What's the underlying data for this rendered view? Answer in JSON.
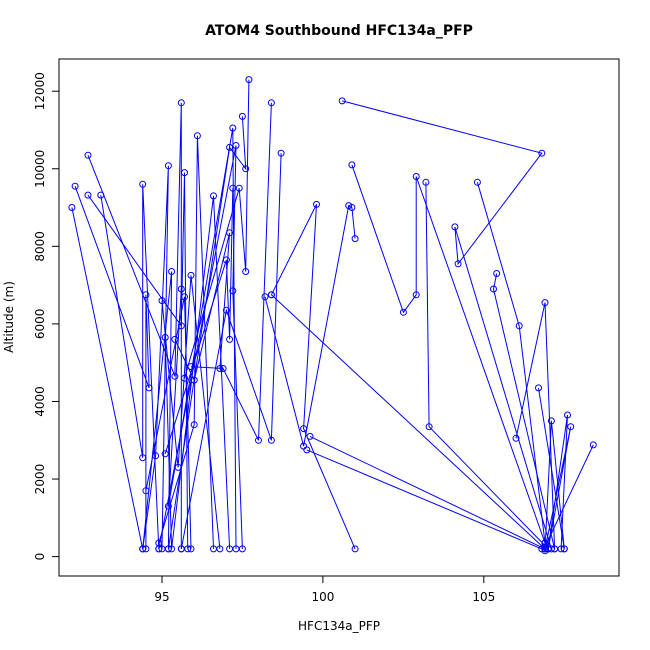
{
  "chart_data": {
    "type": "line",
    "title": "ATOM4 Southbound HFC134a_PFP",
    "xlabel": "HFC134a_PFP",
    "ylabel": "Altitude (m)",
    "xlim": [
      91.8,
      109.2
    ],
    "ylim": [
      -500,
      12830
    ],
    "xticks": [
      95,
      100,
      105
    ],
    "yticks": [
      0,
      2000,
      4000,
      6000,
      8000,
      10000,
      12000
    ],
    "marker": "open-circle",
    "color": "#0000ff",
    "grid": false,
    "series": [
      {
        "points": [
          [
            92.2,
            9000
          ],
          [
            94.4,
            200
          ],
          [
            94.8,
            2600
          ],
          [
            95.2,
            10080
          ],
          [
            95.0,
            200
          ]
        ]
      },
      {
        "points": [
          [
            92.3,
            9550
          ],
          [
            94.6,
            4350
          ],
          [
            94.5,
            6750
          ],
          [
            94.5,
            200
          ]
        ]
      },
      {
        "points": [
          [
            92.7,
            10350
          ],
          [
            95.4,
            4650
          ],
          [
            95.6,
            11700
          ],
          [
            95.6,
            200
          ]
        ]
      },
      {
        "points": [
          [
            92.7,
            9320
          ],
          [
            95.6,
            5950
          ],
          [
            95.7,
            9900
          ],
          [
            95.8,
            200
          ]
        ]
      },
      {
        "points": [
          [
            93.1,
            9320
          ],
          [
            94.4,
            2550
          ],
          [
            94.4,
            9600
          ],
          [
            94.9,
            200
          ]
        ]
      },
      {
        "points": [
          [
            94.5,
            1700
          ],
          [
            95.7,
            6700
          ],
          [
            95.9,
            200
          ]
        ]
      },
      {
        "points": [
          [
            94.4,
            200
          ],
          [
            95.3,
            7350
          ],
          [
            95.2,
            200
          ]
        ]
      },
      {
        "points": [
          [
            94.9,
            350
          ],
          [
            96.0,
            3400
          ],
          [
            96.1,
            10850
          ],
          [
            96.6,
            200
          ]
        ]
      },
      {
        "points": [
          [
            95.0,
            6600
          ],
          [
            95.5,
            2300
          ],
          [
            95.9,
            7250
          ],
          [
            96.8,
            200
          ]
        ]
      },
      {
        "points": [
          [
            95.1,
            5650
          ],
          [
            95.3,
            200
          ],
          [
            96.6,
            9300
          ],
          [
            97.1,
            200
          ]
        ]
      },
      {
        "points": [
          [
            95.4,
            5600
          ],
          [
            96.0,
            4550
          ],
          [
            97.1,
            8350
          ],
          [
            96.8,
            4850
          ]
        ]
      },
      {
        "points": [
          [
            95.6,
            6900
          ],
          [
            95.2,
            1300
          ],
          [
            97.2,
            11050
          ],
          [
            97.3,
            200
          ]
        ]
      },
      {
        "points": [
          [
            95.1,
            2650
          ],
          [
            97.0,
            7650
          ],
          [
            97.1,
            5600
          ],
          [
            97.2,
            9500
          ]
        ]
      },
      {
        "points": [
          [
            94.9,
            200
          ],
          [
            97.3,
            10600
          ],
          [
            97.2,
            6850
          ],
          [
            97.5,
            200
          ]
        ]
      },
      {
        "points": [
          [
            95.7,
            4600
          ],
          [
            97.4,
            9500
          ],
          [
            97.6,
            7350
          ],
          [
            97.7,
            12300
          ]
        ]
      },
      {
        "points": [
          [
            95.2,
            200
          ],
          [
            97.1,
            10550
          ],
          [
            97.6,
            10000
          ],
          [
            97.5,
            11350
          ]
        ]
      },
      {
        "points": [
          [
            95.9,
            4900
          ],
          [
            96.9,
            4850
          ],
          [
            98.0,
            3000
          ],
          [
            98.4,
            11700
          ]
        ]
      },
      {
        "points": [
          [
            95.6,
            200
          ],
          [
            97.0,
            6350
          ],
          [
            98.4,
            3000
          ],
          [
            98.7,
            10400
          ]
        ]
      },
      {
        "points": [
          [
            98.4,
            6750
          ],
          [
            99.8,
            9080
          ],
          [
            99.4,
            3300
          ],
          [
            101.0,
            200
          ]
        ]
      },
      {
        "points": [
          [
            98.2,
            6700
          ],
          [
            99.4,
            2850
          ],
          [
            100.8,
            9050
          ],
          [
            100.9,
            9000
          ],
          [
            101.0,
            8200
          ]
        ]
      },
      {
        "points": [
          [
            98.4,
            6750
          ],
          [
            106.9,
            200
          ]
        ]
      },
      {
        "points": [
          [
            99.6,
            3100
          ],
          [
            106.9,
            200
          ]
        ]
      },
      {
        "points": [
          [
            99.5,
            2750
          ],
          [
            106.8,
            200
          ]
        ]
      },
      {
        "points": [
          [
            100.6,
            11750
          ],
          [
            106.8,
            10400
          ],
          [
            104.2,
            7550
          ],
          [
            104.1,
            8500
          ],
          [
            107.1,
            200
          ]
        ]
      },
      {
        "points": [
          [
            100.9,
            10100
          ],
          [
            102.5,
            6300
          ],
          [
            102.9,
            6750
          ],
          [
            102.9,
            9800
          ],
          [
            106.9,
            350
          ]
        ]
      },
      {
        "points": [
          [
            103.2,
            9650
          ],
          [
            103.3,
            3350
          ],
          [
            107.0,
            200
          ]
        ]
      },
      {
        "points": [
          [
            104.8,
            9650
          ],
          [
            106.1,
            5950
          ],
          [
            106.9,
            350
          ]
        ]
      },
      {
        "points": [
          [
            105.4,
            7300
          ],
          [
            105.3,
            6900
          ],
          [
            107.2,
            200
          ]
        ]
      },
      {
        "points": [
          [
            106.7,
            4350
          ],
          [
            107.5,
            200
          ]
        ]
      },
      {
        "points": [
          [
            106.0,
            3050
          ],
          [
            106.9,
            6550
          ],
          [
            107.2,
            200
          ]
        ]
      },
      {
        "points": [
          [
            106.9,
            150
          ],
          [
            107.1,
            3500
          ],
          [
            107.5,
            200
          ]
        ]
      },
      {
        "points": [
          [
            107.0,
            200
          ],
          [
            107.6,
            3650
          ],
          [
            107.4,
            200
          ]
        ]
      },
      {
        "points": [
          [
            107.0,
            200
          ],
          [
            107.7,
            3350
          ],
          [
            106.9,
            200
          ]
        ]
      },
      {
        "points": [
          [
            108.4,
            2880
          ],
          [
            106.9,
            250
          ]
        ]
      }
    ]
  }
}
